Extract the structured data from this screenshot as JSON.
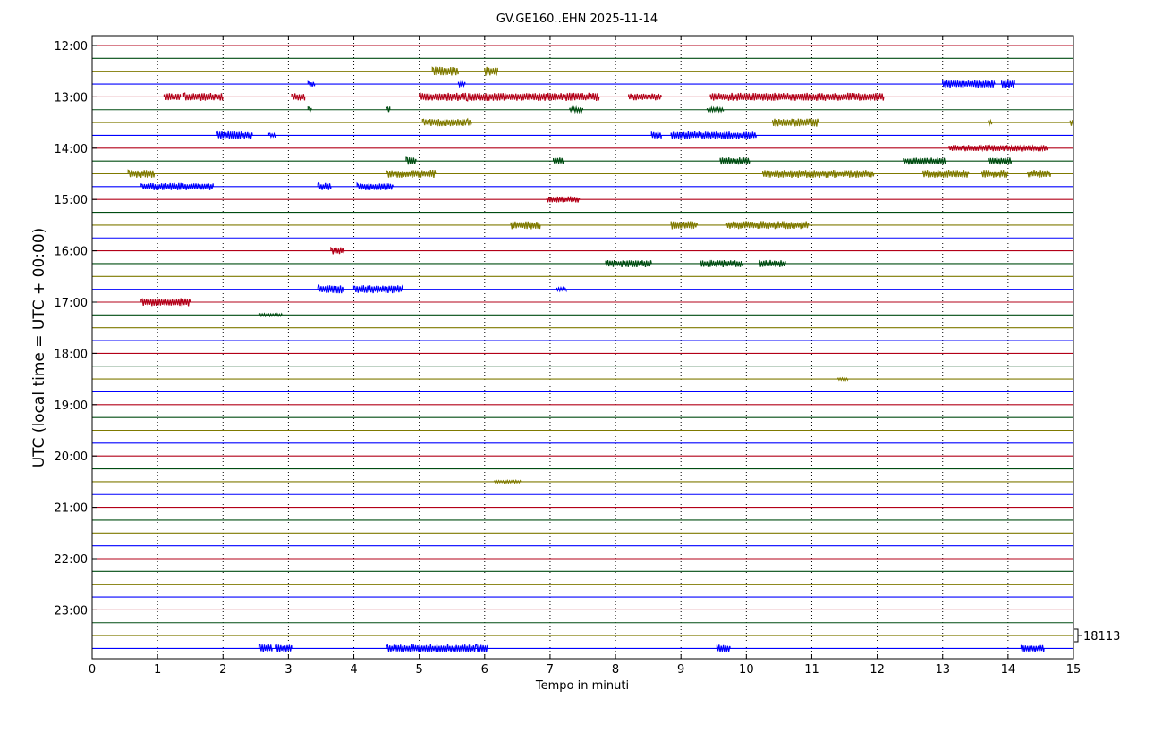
{
  "chart_data": {
    "type": "line",
    "title": "GV.GE160..EHN 2025-11-14",
    "xlabel": "Tempo in minuti",
    "ylabel": "UTC (local time = UTC + 00:00)",
    "xlim": [
      0,
      15
    ],
    "x_ticks": [
      "0",
      "1",
      "2",
      "3",
      "4",
      "5",
      "6",
      "7",
      "8",
      "9",
      "10",
      "11",
      "12",
      "13",
      "14",
      "15"
    ],
    "y_ticks": [
      "12:00",
      "13:00",
      "14:00",
      "15:00",
      "16:00",
      "17:00",
      "18:00",
      "19:00",
      "20:00",
      "21:00",
      "22:00",
      "23:00"
    ],
    "scale_label": "18113",
    "grid": "vertical dotted",
    "trace_interval_minutes": 15,
    "trace_colors": [
      "#b30018",
      "#004d12",
      "#7f7a00",
      "#0000ff"
    ],
    "traces": [
      {
        "start": "12:00",
        "bursts": []
      },
      {
        "start": "12:15",
        "bursts": []
      },
      {
        "start": "12:30",
        "bursts": [
          [
            5.2,
            5.6,
            10
          ],
          [
            6.0,
            6.2,
            10
          ]
        ]
      },
      {
        "start": "12:45",
        "bursts": [
          [
            13.0,
            13.8,
            9
          ],
          [
            13.9,
            14.1,
            9
          ],
          [
            5.6,
            5.7,
            6
          ],
          [
            3.3,
            3.4,
            6
          ]
        ]
      },
      {
        "start": "13:00",
        "bursts": [
          [
            1.1,
            1.35,
            8
          ],
          [
            1.4,
            2.0,
            9
          ],
          [
            3.05,
            3.25,
            8
          ],
          [
            5.0,
            7.75,
            9
          ],
          [
            8.2,
            8.7,
            8
          ],
          [
            9.45,
            12.1,
            9
          ]
        ]
      },
      {
        "start": "13:15",
        "bursts": [
          [
            4.5,
            4.55,
            7
          ],
          [
            7.3,
            7.5,
            5
          ],
          [
            9.4,
            9.65,
            5
          ],
          [
            3.3,
            3.35,
            6
          ]
        ]
      },
      {
        "start": "13:30",
        "bursts": [
          [
            5.05,
            5.8,
            8
          ],
          [
            10.4,
            11.1,
            9
          ],
          [
            13.7,
            13.75,
            7
          ],
          [
            14.95,
            15.0,
            8
          ]
        ]
      },
      {
        "start": "13:45",
        "bursts": [
          [
            1.9,
            2.45,
            9
          ],
          [
            8.55,
            8.7,
            9
          ],
          [
            8.85,
            10.15,
            9
          ],
          [
            2.7,
            2.8,
            5
          ]
        ]
      },
      {
        "start": "14:00",
        "bursts": [
          [
            13.1,
            14.6,
            7
          ]
        ]
      },
      {
        "start": "14:15",
        "bursts": [
          [
            4.8,
            4.95,
            8
          ],
          [
            7.05,
            7.2,
            8
          ],
          [
            9.6,
            10.05,
            8
          ],
          [
            12.4,
            13.05,
            8
          ],
          [
            13.7,
            14.05,
            8
          ]
        ]
      },
      {
        "start": "14:30",
        "bursts": [
          [
            0.55,
            0.95,
            9
          ],
          [
            4.5,
            5.25,
            9
          ],
          [
            10.25,
            11.95,
            9
          ],
          [
            12.7,
            13.4,
            9
          ],
          [
            13.6,
            14.0,
            9
          ],
          [
            14.3,
            14.65,
            9
          ]
        ]
      },
      {
        "start": "14:45",
        "bursts": [
          [
            0.75,
            1.85,
            8
          ],
          [
            3.45,
            3.65,
            8
          ],
          [
            4.05,
            4.6,
            8
          ]
        ]
      },
      {
        "start": "15:00",
        "bursts": [
          [
            6.95,
            7.45,
            7
          ]
        ]
      },
      {
        "start": "15:15",
        "bursts": []
      },
      {
        "start": "15:30",
        "bursts": [
          [
            6.4,
            6.85,
            9
          ],
          [
            8.85,
            9.25,
            9
          ],
          [
            9.7,
            10.95,
            9
          ]
        ]
      },
      {
        "start": "15:45",
        "bursts": []
      },
      {
        "start": "16:00",
        "bursts": [
          [
            3.65,
            3.85,
            8
          ]
        ]
      },
      {
        "start": "16:15",
        "bursts": [
          [
            7.85,
            8.55,
            8
          ],
          [
            9.3,
            9.95,
            8
          ],
          [
            10.2,
            10.6,
            8
          ]
        ]
      },
      {
        "start": "16:30",
        "bursts": []
      },
      {
        "start": "16:45",
        "bursts": [
          [
            3.45,
            3.85,
            9
          ],
          [
            4.0,
            4.75,
            9
          ],
          [
            7.1,
            7.25,
            4
          ]
        ]
      },
      {
        "start": "17:00",
        "bursts": [
          [
            0.75,
            1.5,
            9
          ]
        ]
      },
      {
        "start": "17:15",
        "bursts": [
          [
            2.55,
            2.9,
            3
          ]
        ]
      },
      {
        "start": "17:30",
        "bursts": []
      },
      {
        "start": "17:45",
        "bursts": []
      },
      {
        "start": "18:00",
        "bursts": []
      },
      {
        "start": "18:15",
        "bursts": []
      },
      {
        "start": "18:30",
        "bursts": [
          [
            11.4,
            11.55,
            3
          ]
        ]
      },
      {
        "start": "18:45",
        "bursts": []
      },
      {
        "start": "19:00",
        "bursts": []
      },
      {
        "start": "19:15",
        "bursts": []
      },
      {
        "start": "19:30",
        "bursts": []
      },
      {
        "start": "19:45",
        "bursts": []
      },
      {
        "start": "20:00",
        "bursts": []
      },
      {
        "start": "20:15",
        "bursts": []
      },
      {
        "start": "20:30",
        "bursts": [
          [
            6.15,
            6.55,
            3
          ]
        ]
      },
      {
        "start": "20:45",
        "bursts": []
      },
      {
        "start": "21:00",
        "bursts": []
      },
      {
        "start": "21:15",
        "bursts": []
      },
      {
        "start": "21:30",
        "bursts": []
      },
      {
        "start": "21:45",
        "bursts": []
      },
      {
        "start": "22:00",
        "bursts": []
      },
      {
        "start": "22:15",
        "bursts": []
      },
      {
        "start": "22:30",
        "bursts": []
      },
      {
        "start": "22:45",
        "bursts": []
      },
      {
        "start": "23:00",
        "bursts": []
      },
      {
        "start": "23:15",
        "bursts": []
      },
      {
        "start": "23:30",
        "bursts": []
      },
      {
        "start": "23:45",
        "bursts": [
          [
            2.55,
            2.75,
            9
          ],
          [
            2.8,
            3.05,
            9
          ],
          [
            4.5,
            6.05,
            9
          ],
          [
            9.55,
            9.75,
            9
          ],
          [
            14.2,
            14.55,
            9
          ]
        ]
      }
    ]
  }
}
